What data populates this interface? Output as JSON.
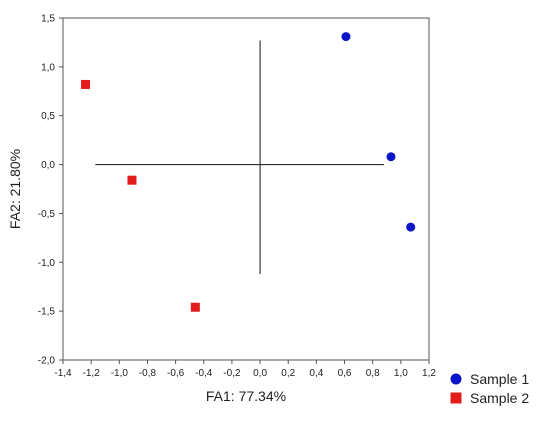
{
  "chart_data": {
    "type": "scatter",
    "title": "",
    "xlabel": "FA1: 77.34%",
    "ylabel": "FA2: 21.80%",
    "xlim": [
      -1.4,
      1.2
    ],
    "ylim": [
      -2.0,
      1.5
    ],
    "xticks": [
      -1.4,
      -1.2,
      -1.0,
      -0.8,
      -0.6,
      -0.4,
      -0.2,
      0.0,
      0.2,
      0.4,
      0.6,
      0.8,
      1.0,
      1.2
    ],
    "xtick_labels": [
      "-1,4",
      "-1,2",
      "-1,0",
      "-0,8",
      "-0,6",
      "-0,4",
      "-0,2",
      "0,0",
      "0,2",
      "0,4",
      "0,6",
      "0,8",
      "1,0",
      "1,2"
    ],
    "yticks": [
      1.5,
      1.0,
      0.5,
      0.0,
      -0.5,
      -1.0,
      -1.5,
      -2.0
    ],
    "ytick_labels": [
      "1,5",
      "1,0",
      "0,5",
      "0,0",
      "-0,5",
      "-1,0",
      "-1,5",
      "-2,0"
    ],
    "grid": false,
    "reference_lines": {
      "horizontal": {
        "y": 0.0,
        "x_from": -1.17,
        "x_to": 0.88
      },
      "vertical": {
        "x": 0.0,
        "y_from": -1.12,
        "y_to": 1.27
      }
    },
    "legend_position": "bottom-right, outside plot",
    "series": [
      {
        "name": "Sample 1",
        "marker": "circle",
        "color": "#0a14c8",
        "points": [
          {
            "x": 0.61,
            "y": 1.31
          },
          {
            "x": 0.93,
            "y": 0.08
          },
          {
            "x": 1.07,
            "y": -0.64
          }
        ]
      },
      {
        "name": "Sample 2",
        "marker": "square",
        "color": "#e31b1b",
        "points": [
          {
            "x": -1.24,
            "y": 0.82
          },
          {
            "x": -0.91,
            "y": -0.16
          },
          {
            "x": -0.46,
            "y": -1.46
          }
        ]
      }
    ]
  }
}
